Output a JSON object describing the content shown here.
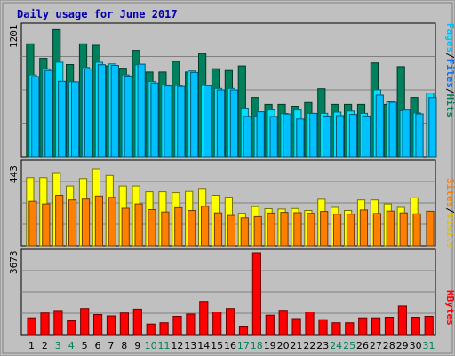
{
  "chart_data": [
    {
      "type": "bar",
      "title": "Daily usage for June 2017",
      "panel": "hits-files-pages",
      "categories": [
        "1",
        "2",
        "3",
        "4",
        "5",
        "6",
        "7",
        "8",
        "9",
        "10",
        "11",
        "12",
        "13",
        "14",
        "15",
        "16",
        "17",
        "18",
        "19",
        "20",
        "21",
        "22",
        "23",
        "24",
        "25",
        "26",
        "27",
        "28",
        "29",
        "30",
        "31"
      ],
      "weekend_days": [
        "3",
        "4",
        "10",
        "11",
        "17",
        "18",
        "24",
        "25",
        "31"
      ],
      "ylabel_parts": [
        "Pages",
        "/",
        "Files",
        "/",
        "Hits"
      ],
      "ymax_label": "1201",
      "ylim": [
        0,
        1201
      ],
      "series": [
        {
          "name": "Hits",
          "color": "#00805c",
          "values": [
            1042,
            908,
            1173,
            851,
            1042,
            1028,
            838,
            818,
            982,
            782,
            782,
            880,
            782,
            953,
            813,
            796,
            838,
            546,
            482,
            482,
            465,
            499,
            628,
            482,
            482,
            482,
            866,
            482,
            832,
            546,
            null
          ]
        },
        {
          "name": "Files",
          "color": "#00e0ff",
          "values": [
            756,
            812,
            873,
            693,
            824,
            872,
            857,
            756,
            849,
            694,
            663,
            658,
            792,
            658,
            631,
            631,
            448,
            375,
            431,
            399,
            431,
            400,
            400,
            411,
            421,
            400,
            618,
            506,
            424,
            404,
            587
          ]
        },
        {
          "name": "Pages",
          "color": "#00c0ff",
          "values": [
            740,
            796,
            697,
            692,
            812,
            850,
            843,
            745,
            855,
            680,
            653,
            649,
            779,
            656,
            617,
            617,
            372,
            415,
            371,
            394,
            347,
            400,
            375,
            379,
            390,
            375,
            568,
            502,
            430,
            395,
            545
          ]
        }
      ]
    },
    {
      "type": "bar",
      "panel": "visits-sites",
      "categories": [
        "1",
        "2",
        "3",
        "4",
        "5",
        "6",
        "7",
        "8",
        "9",
        "10",
        "11",
        "12",
        "13",
        "14",
        "15",
        "16",
        "17",
        "18",
        "19",
        "20",
        "21",
        "22",
        "23",
        "24",
        "25",
        "26",
        "27",
        "28",
        "29",
        "30",
        "31"
      ],
      "ylabel_parts": [
        "Sites",
        "/",
        "Visits"
      ],
      "ymax_label": "443",
      "ylim": [
        0,
        443
      ],
      "series": [
        {
          "name": "Visits",
          "color": "#ffff00",
          "values": [
            367,
            367,
            395,
            322,
            362,
            414,
            379,
            322,
            322,
            291,
            291,
            286,
            293,
            309,
            272,
            262,
            175,
            211,
            200,
            198,
            201,
            190,
            251,
            207,
            190,
            247,
            247,
            226,
            207,
            258,
            null
          ]
        },
        {
          "name": "Sites",
          "color": "#ff8000",
          "values": [
            240,
            226,
            272,
            247,
            252,
            268,
            261,
            202,
            226,
            195,
            182,
            205,
            190,
            213,
            177,
            163,
            150,
            157,
            176,
            180,
            178,
            175,
            185,
            170,
            170,
            193,
            174,
            187,
            177,
            172,
            186
          ]
        }
      ]
    },
    {
      "type": "bar",
      "panel": "kbytes",
      "categories": [
        "1",
        "2",
        "3",
        "4",
        "5",
        "6",
        "7",
        "8",
        "9",
        "10",
        "11",
        "12",
        "13",
        "14",
        "15",
        "16",
        "17",
        "18",
        "19",
        "20",
        "21",
        "22",
        "23",
        "24",
        "25",
        "26",
        "27",
        "28",
        "29",
        "30",
        "31"
      ],
      "ylabel_parts": [
        "KBytes"
      ],
      "ymax_label": "3673",
      "ylim": [
        0,
        3673
      ],
      "series": [
        {
          "name": "KBytes",
          "color": "#ff0000",
          "values": [
            750,
            970,
            1080,
            620,
            1170,
            900,
            840,
            970,
            1140,
            470,
            530,
            820,
            920,
            1490,
            1020,
            1170,
            380,
            3673,
            870,
            1090,
            720,
            1020,
            670,
            530,
            530,
            750,
            750,
            780,
            1280,
            780,
            820
          ]
        }
      ]
    }
  ]
}
